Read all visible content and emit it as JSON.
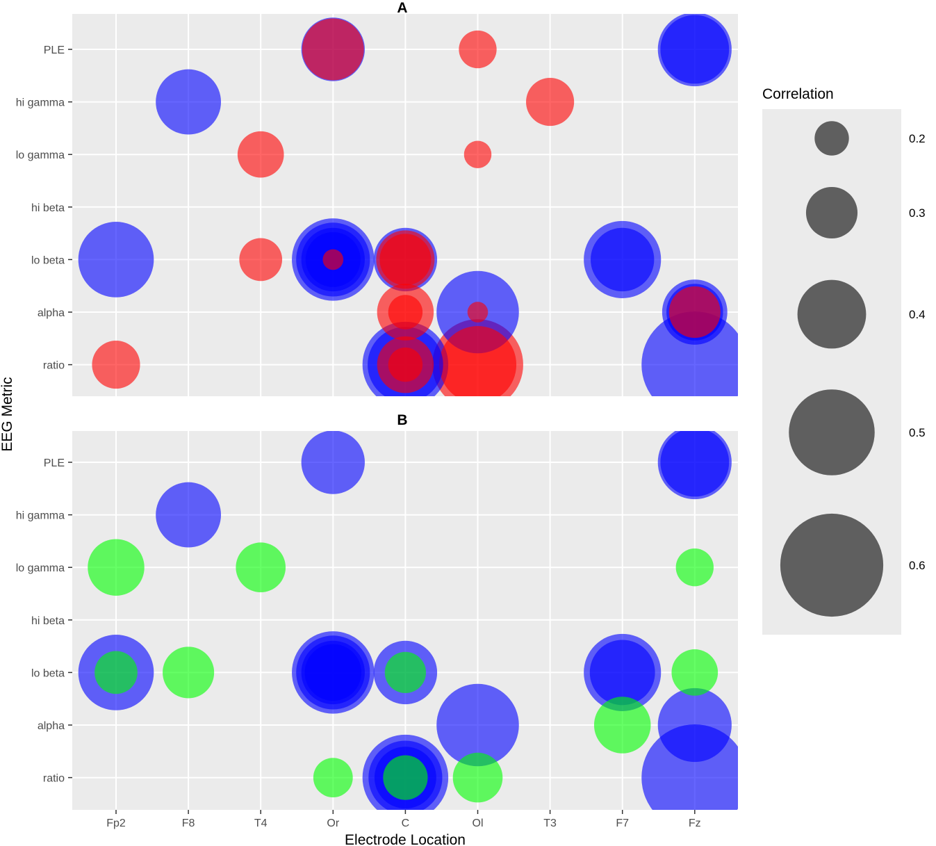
{
  "chart_data": {
    "type": "scatter",
    "subtype": "bubble",
    "xlabel": "Electrode Location",
    "ylabel": "EEG Metric",
    "x_categories": [
      "Fp2",
      "F8",
      "T4",
      "Or",
      "C",
      "Ol",
      "T3",
      "F7",
      "Fz"
    ],
    "y_categories": [
      "PLE",
      "hi gamma",
      "lo gamma",
      "hi beta",
      "lo beta",
      "alpha",
      "ratio"
    ],
    "legend": {
      "title": "Correlation",
      "position": "right",
      "values": [
        0.2,
        0.3,
        0.4,
        0.5,
        0.6
      ],
      "labels": [
        "0.2",
        "0.3",
        "0.4",
        "0.5",
        "0.6"
      ]
    },
    "colors": {
      "blue": "#0000ff",
      "red": "#ff0000",
      "green": "#00ff00",
      "panel_bg": "#ebebeb",
      "grid": "#ffffff",
      "legend_key": "#5f5f5f"
    },
    "panels": [
      {
        "title": "A",
        "points": [
          {
            "x": "Or",
            "y": "PLE",
            "r": 0.37,
            "color": "blue"
          },
          {
            "x": "Or",
            "y": "PLE",
            "r": 0.36,
            "color": "red"
          },
          {
            "x": "Ol",
            "y": "PLE",
            "r": 0.22,
            "color": "red"
          },
          {
            "x": "Fz",
            "y": "PLE",
            "r": 0.43,
            "color": "blue"
          },
          {
            "x": "Fz",
            "y": "PLE",
            "r": 0.4,
            "color": "blue"
          },
          {
            "x": "F8",
            "y": "hi gamma",
            "r": 0.38,
            "color": "blue"
          },
          {
            "x": "T3",
            "y": "hi gamma",
            "r": 0.28,
            "color": "red"
          },
          {
            "x": "T4",
            "y": "lo gamma",
            "r": 0.27,
            "color": "red"
          },
          {
            "x": "Ol",
            "y": "lo gamma",
            "r": 0.16,
            "color": "red"
          },
          {
            "x": "Fp2",
            "y": "lo beta",
            "r": 0.44,
            "color": "blue"
          },
          {
            "x": "T4",
            "y": "lo beta",
            "r": 0.25,
            "color": "red"
          },
          {
            "x": "Or",
            "y": "lo beta",
            "r": 0.48,
            "color": "blue"
          },
          {
            "x": "Or",
            "y": "lo beta",
            "r": 0.43,
            "color": "blue"
          },
          {
            "x": "Or",
            "y": "lo beta",
            "r": 0.37,
            "color": "blue"
          },
          {
            "x": "Or",
            "y": "lo beta",
            "r": 0.32,
            "color": "blue"
          },
          {
            "x": "Or",
            "y": "lo beta",
            "r": 0.12,
            "color": "red"
          },
          {
            "x": "C",
            "y": "lo beta",
            "r": 0.37,
            "color": "blue"
          },
          {
            "x": "C",
            "y": "lo beta",
            "r": 0.34,
            "color": "red"
          },
          {
            "x": "C",
            "y": "lo beta",
            "r": 0.3,
            "color": "red"
          },
          {
            "x": "F7",
            "y": "lo beta",
            "r": 0.45,
            "color": "blue"
          },
          {
            "x": "F7",
            "y": "lo beta",
            "r": 0.37,
            "color": "blue"
          },
          {
            "x": "C",
            "y": "alpha",
            "r": 0.33,
            "color": "red"
          },
          {
            "x": "C",
            "y": "alpha",
            "r": 0.2,
            "color": "red"
          },
          {
            "x": "Ol",
            "y": "alpha",
            "r": 0.48,
            "color": "blue"
          },
          {
            "x": "Ol",
            "y": "alpha",
            "r": 0.12,
            "color": "red"
          },
          {
            "x": "Fz",
            "y": "alpha",
            "r": 0.38,
            "color": "blue"
          },
          {
            "x": "Fz",
            "y": "alpha",
            "r": 0.33,
            "color": "blue"
          },
          {
            "x": "Fz",
            "y": "alpha",
            "r": 0.3,
            "color": "red"
          },
          {
            "x": "Fp2",
            "y": "ratio",
            "r": 0.28,
            "color": "red"
          },
          {
            "x": "C",
            "y": "ratio",
            "r": 0.5,
            "color": "blue"
          },
          {
            "x": "C",
            "y": "ratio",
            "r": 0.44,
            "color": "blue"
          },
          {
            "x": "C",
            "y": "ratio",
            "r": 0.33,
            "color": "red"
          },
          {
            "x": "C",
            "y": "ratio",
            "r": 0.2,
            "color": "red"
          },
          {
            "x": "Ol",
            "y": "ratio",
            "r": 0.53,
            "color": "red"
          },
          {
            "x": "Ol",
            "y": "ratio",
            "r": 0.45,
            "color": "red"
          },
          {
            "x": "Fz",
            "y": "ratio",
            "r": 0.62,
            "color": "blue"
          }
        ]
      },
      {
        "title": "B",
        "points": [
          {
            "x": "Or",
            "y": "PLE",
            "r": 0.37,
            "color": "blue"
          },
          {
            "x": "Fz",
            "y": "PLE",
            "r": 0.43,
            "color": "blue"
          },
          {
            "x": "Fz",
            "y": "PLE",
            "r": 0.4,
            "color": "blue"
          },
          {
            "x": "F8",
            "y": "hi gamma",
            "r": 0.38,
            "color": "blue"
          },
          {
            "x": "Fp2",
            "y": "lo gamma",
            "r": 0.33,
            "color": "green"
          },
          {
            "x": "T4",
            "y": "lo gamma",
            "r": 0.29,
            "color": "green"
          },
          {
            "x": "Fz",
            "y": "lo gamma",
            "r": 0.22,
            "color": "green"
          },
          {
            "x": "Fp2",
            "y": "lo beta",
            "r": 0.44,
            "color": "blue"
          },
          {
            "x": "Fp2",
            "y": "lo beta",
            "r": 0.25,
            "color": "green"
          },
          {
            "x": "F8",
            "y": "lo beta",
            "r": 0.3,
            "color": "green"
          },
          {
            "x": "Or",
            "y": "lo beta",
            "r": 0.48,
            "color": "blue"
          },
          {
            "x": "Or",
            "y": "lo beta",
            "r": 0.43,
            "color": "blue"
          },
          {
            "x": "Or",
            "y": "lo beta",
            "r": 0.37,
            "color": "blue"
          },
          {
            "x": "Or",
            "y": "lo beta",
            "r": 0.33,
            "color": "blue"
          },
          {
            "x": "C",
            "y": "lo beta",
            "r": 0.37,
            "color": "blue"
          },
          {
            "x": "C",
            "y": "lo beta",
            "r": 0.24,
            "color": "green"
          },
          {
            "x": "F7",
            "y": "lo beta",
            "r": 0.45,
            "color": "blue"
          },
          {
            "x": "F7",
            "y": "lo beta",
            "r": 0.38,
            "color": "blue"
          },
          {
            "x": "Fz",
            "y": "lo beta",
            "r": 0.27,
            "color": "green"
          },
          {
            "x": "Ol",
            "y": "alpha",
            "r": 0.48,
            "color": "blue"
          },
          {
            "x": "F7",
            "y": "alpha",
            "r": 0.33,
            "color": "green"
          },
          {
            "x": "Fz",
            "y": "alpha",
            "r": 0.43,
            "color": "blue"
          },
          {
            "x": "Or",
            "y": "ratio",
            "r": 0.23,
            "color": "green"
          },
          {
            "x": "C",
            "y": "ratio",
            "r": 0.5,
            "color": "blue"
          },
          {
            "x": "C",
            "y": "ratio",
            "r": 0.43,
            "color": "blue"
          },
          {
            "x": "C",
            "y": "ratio",
            "r": 0.36,
            "color": "blue"
          },
          {
            "x": "C",
            "y": "ratio",
            "r": 0.26,
            "color": "green"
          },
          {
            "x": "Ol",
            "y": "ratio",
            "r": 0.29,
            "color": "green"
          },
          {
            "x": "Fz",
            "y": "ratio",
            "r": 0.62,
            "color": "blue"
          }
        ]
      }
    ]
  }
}
